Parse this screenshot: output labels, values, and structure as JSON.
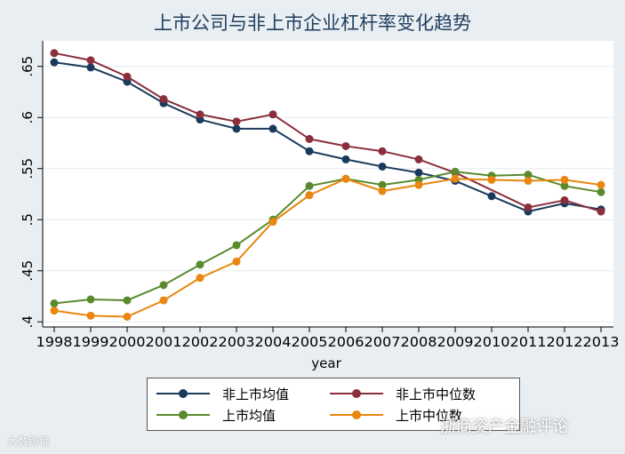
{
  "chart_data": {
    "type": "line",
    "title": "上市公司与非上市企业杠杆率变化趋势",
    "xlabel": "year",
    "ylabel": "",
    "x": [
      1998,
      1999,
      2000,
      2001,
      2002,
      2003,
      2004,
      2005,
      2006,
      2007,
      2008,
      2009,
      2010,
      2011,
      2012,
      2013
    ],
    "xlim": [
      1998,
      2013
    ],
    "ylim": [
      0.395,
      0.675
    ],
    "yticks": [
      0.4,
      0.45,
      0.5,
      0.55,
      0.6,
      0.65
    ],
    "ytick_labels": [
      ".4",
      ".45",
      ".5",
      ".55",
      ".6",
      ".65"
    ],
    "grid": true,
    "legend_position": "bottom",
    "series": [
      {
        "name": "非上市均值",
        "color": "#1a3a5c",
        "values": [
          0.654,
          0.649,
          0.635,
          0.614,
          0.598,
          0.589,
          0.589,
          0.567,
          0.559,
          0.552,
          0.546,
          0.538,
          0.523,
          0.508,
          0.516,
          0.51
        ]
      },
      {
        "name": "非上市中位数",
        "color": "#8b2f3c",
        "values": [
          0.663,
          0.656,
          0.64,
          0.618,
          0.603,
          0.596,
          0.603,
          0.579,
          0.572,
          0.567,
          0.559,
          0.546,
          null,
          0.512,
          0.519,
          0.508
        ]
      },
      {
        "name": "上市均值",
        "color": "#5a8a2e",
        "values": [
          0.418,
          0.422,
          0.421,
          0.436,
          0.456,
          0.475,
          0.5,
          0.533,
          0.54,
          0.534,
          0.539,
          0.547,
          0.543,
          0.544,
          0.533,
          0.527
        ]
      },
      {
        "name": "上市中位数",
        "color": "#e8860f",
        "values": [
          0.411,
          0.406,
          0.405,
          0.421,
          0.443,
          0.459,
          0.498,
          0.524,
          0.54,
          0.528,
          0.534,
          0.54,
          0.539,
          0.538,
          0.539,
          0.534
        ]
      }
    ]
  },
  "watermarks": {
    "left": "大数跨境",
    "right": "浙商资产金融评论"
  }
}
